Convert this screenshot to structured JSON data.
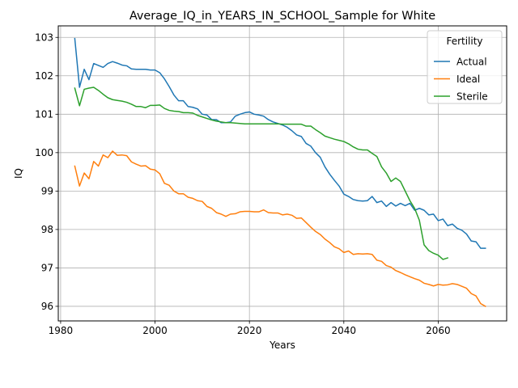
{
  "chart_data": {
    "type": "line",
    "title": "Average_IQ_in_YEARS_IN_SCHOOL_Sample for White",
    "xlabel": "Years",
    "ylabel": "IQ",
    "xlim": [
      1979.5,
      2074.5
    ],
    "ylim": [
      95.62,
      103.3
    ],
    "xticks": [
      1980,
      2000,
      2020,
      2040,
      2060
    ],
    "yticks": [
      96,
      97,
      98,
      99,
      100,
      101,
      102,
      103
    ],
    "grid": true,
    "legend": {
      "title": "Fertility",
      "position": "top-right"
    },
    "series": [
      {
        "name": "Actual",
        "color": "#1f77b4",
        "points": [
          [
            1983,
            102.97
          ],
          [
            1984,
            101.7
          ],
          [
            1985,
            102.17
          ],
          [
            1986,
            101.9
          ],
          [
            1987,
            102.32
          ],
          [
            1988,
            102.27
          ],
          [
            1989,
            102.22
          ],
          [
            1990,
            102.32
          ],
          [
            1991,
            102.37
          ],
          [
            1992,
            102.33
          ],
          [
            1993,
            102.28
          ],
          [
            1994,
            102.26
          ],
          [
            1995,
            102.18
          ],
          [
            1996,
            102.17
          ],
          [
            1997,
            102.17
          ],
          [
            1998,
            102.17
          ],
          [
            1999,
            102.15
          ],
          [
            2000,
            102.15
          ],
          [
            2001,
            102.08
          ],
          [
            2002,
            101.92
          ],
          [
            2003,
            101.72
          ],
          [
            2004,
            101.5
          ],
          [
            2005,
            101.35
          ],
          [
            2006,
            101.35
          ],
          [
            2007,
            101.2
          ],
          [
            2008,
            101.18
          ],
          [
            2009,
            101.14
          ],
          [
            2010,
            101.0
          ],
          [
            2011,
            100.98
          ],
          [
            2012,
            100.86
          ],
          [
            2013,
            100.86
          ],
          [
            2014,
            100.78
          ],
          [
            2015,
            100.78
          ],
          [
            2016,
            100.8
          ],
          [
            2017,
            100.95
          ],
          [
            2018,
            101.0
          ],
          [
            2019,
            101.04
          ],
          [
            2020,
            101.06
          ],
          [
            2021,
            101.0
          ],
          [
            2022,
            100.98
          ],
          [
            2023,
            100.95
          ],
          [
            2024,
            100.86
          ],
          [
            2025,
            100.8
          ],
          [
            2026,
            100.76
          ],
          [
            2027,
            100.72
          ],
          [
            2028,
            100.66
          ],
          [
            2029,
            100.57
          ],
          [
            2030,
            100.46
          ],
          [
            2031,
            100.42
          ],
          [
            2032,
            100.24
          ],
          [
            2033,
            100.17
          ],
          [
            2034,
            100.0
          ],
          [
            2035,
            99.88
          ],
          [
            2036,
            99.63
          ],
          [
            2037,
            99.44
          ],
          [
            2038,
            99.28
          ],
          [
            2039,
            99.13
          ],
          [
            2040,
            98.92
          ],
          [
            2041,
            98.86
          ],
          [
            2042,
            98.78
          ],
          [
            2043,
            98.75
          ],
          [
            2044,
            98.74
          ],
          [
            2045,
            98.75
          ],
          [
            2046,
            98.86
          ],
          [
            2047,
            98.7
          ],
          [
            2048,
            98.74
          ],
          [
            2049,
            98.6
          ],
          [
            2050,
            98.7
          ],
          [
            2051,
            98.61
          ],
          [
            2052,
            98.68
          ],
          [
            2053,
            98.62
          ],
          [
            2054,
            98.68
          ],
          [
            2055,
            98.5
          ],
          [
            2056,
            98.55
          ],
          [
            2057,
            98.5
          ],
          [
            2058,
            98.38
          ],
          [
            2059,
            98.4
          ],
          [
            2060,
            98.23
          ],
          [
            2061,
            98.27
          ],
          [
            2062,
            98.1
          ],
          [
            2063,
            98.14
          ],
          [
            2064,
            98.03
          ],
          [
            2065,
            97.98
          ],
          [
            2066,
            97.88
          ],
          [
            2067,
            97.7
          ],
          [
            2068,
            97.68
          ],
          [
            2069,
            97.51
          ],
          [
            2070,
            97.51
          ]
        ]
      },
      {
        "name": "Ideal",
        "color": "#ff7f0e",
        "points": [
          [
            1983,
            99.65
          ],
          [
            1984,
            99.13
          ],
          [
            1985,
            99.47
          ],
          [
            1986,
            99.32
          ],
          [
            1987,
            99.77
          ],
          [
            1988,
            99.65
          ],
          [
            1989,
            99.94
          ],
          [
            1990,
            99.87
          ],
          [
            1991,
            100.04
          ],
          [
            1992,
            99.93
          ],
          [
            1993,
            99.94
          ],
          [
            1994,
            99.92
          ],
          [
            1995,
            99.76
          ],
          [
            1996,
            99.7
          ],
          [
            1997,
            99.65
          ],
          [
            1998,
            99.66
          ],
          [
            1999,
            99.57
          ],
          [
            2000,
            99.55
          ],
          [
            2001,
            99.45
          ],
          [
            2002,
            99.2
          ],
          [
            2003,
            99.15
          ],
          [
            2004,
            99.0
          ],
          [
            2005,
            98.93
          ],
          [
            2006,
            98.93
          ],
          [
            2007,
            98.84
          ],
          [
            2008,
            98.81
          ],
          [
            2009,
            98.75
          ],
          [
            2010,
            98.73
          ],
          [
            2011,
            98.6
          ],
          [
            2012,
            98.55
          ],
          [
            2013,
            98.44
          ],
          [
            2014,
            98.4
          ],
          [
            2015,
            98.34
          ],
          [
            2016,
            98.4
          ],
          [
            2017,
            98.41
          ],
          [
            2018,
            98.46
          ],
          [
            2019,
            98.47
          ],
          [
            2020,
            98.47
          ],
          [
            2021,
            98.46
          ],
          [
            2022,
            98.46
          ],
          [
            2023,
            98.51
          ],
          [
            2024,
            98.44
          ],
          [
            2025,
            98.43
          ],
          [
            2026,
            98.43
          ],
          [
            2027,
            98.38
          ],
          [
            2028,
            98.4
          ],
          [
            2029,
            98.37
          ],
          [
            2030,
            98.29
          ],
          [
            2031,
            98.3
          ],
          [
            2032,
            98.18
          ],
          [
            2033,
            98.06
          ],
          [
            2034,
            97.95
          ],
          [
            2035,
            97.87
          ],
          [
            2036,
            97.75
          ],
          [
            2037,
            97.66
          ],
          [
            2038,
            97.55
          ],
          [
            2039,
            97.5
          ],
          [
            2040,
            97.4
          ],
          [
            2041,
            97.44
          ],
          [
            2042,
            97.35
          ],
          [
            2043,
            97.37
          ],
          [
            2044,
            97.36
          ],
          [
            2045,
            97.37
          ],
          [
            2046,
            97.35
          ],
          [
            2047,
            97.2
          ],
          [
            2048,
            97.17
          ],
          [
            2049,
            97.06
          ],
          [
            2050,
            97.02
          ],
          [
            2051,
            96.93
          ],
          [
            2052,
            96.88
          ],
          [
            2053,
            96.82
          ],
          [
            2054,
            96.77
          ],
          [
            2055,
            96.72
          ],
          [
            2056,
            96.68
          ],
          [
            2057,
            96.6
          ],
          [
            2058,
            96.57
          ],
          [
            2059,
            96.53
          ],
          [
            2060,
            96.57
          ],
          [
            2061,
            96.55
          ],
          [
            2062,
            96.56
          ],
          [
            2063,
            96.59
          ],
          [
            2064,
            96.57
          ],
          [
            2065,
            96.52
          ],
          [
            2066,
            96.47
          ],
          [
            2067,
            96.33
          ],
          [
            2068,
            96.27
          ],
          [
            2069,
            96.07
          ],
          [
            2070,
            96.0
          ]
        ]
      },
      {
        "name": "Sterile",
        "color": "#2ca02c",
        "points": [
          [
            1983,
            101.68
          ],
          [
            1984,
            101.22
          ],
          [
            1985,
            101.65
          ],
          [
            1986,
            101.68
          ],
          [
            1987,
            101.7
          ],
          [
            1988,
            101.62
          ],
          [
            1989,
            101.52
          ],
          [
            1990,
            101.43
          ],
          [
            1991,
            101.38
          ],
          [
            1992,
            101.36
          ],
          [
            1993,
            101.34
          ],
          [
            1994,
            101.31
          ],
          [
            1995,
            101.26
          ],
          [
            1996,
            101.2
          ],
          [
            1997,
            101.2
          ],
          [
            1998,
            101.17
          ],
          [
            1999,
            101.23
          ],
          [
            2000,
            101.23
          ],
          [
            2001,
            101.24
          ],
          [
            2002,
            101.15
          ],
          [
            2003,
            101.1
          ],
          [
            2004,
            101.08
          ],
          [
            2005,
            101.07
          ],
          [
            2006,
            101.04
          ],
          [
            2007,
            101.04
          ],
          [
            2008,
            101.03
          ],
          [
            2009,
            100.97
          ],
          [
            2010,
            100.93
          ],
          [
            2011,
            100.89
          ],
          [
            2012,
            100.85
          ],
          [
            2013,
            100.82
          ],
          [
            2014,
            100.8
          ],
          [
            2015,
            100.78
          ],
          [
            2016,
            100.78
          ],
          [
            2017,
            100.77
          ],
          [
            2018,
            100.76
          ],
          [
            2019,
            100.75
          ],
          [
            2020,
            100.75
          ],
          [
            2021,
            100.75
          ],
          [
            2022,
            100.75
          ],
          [
            2023,
            100.75
          ],
          [
            2024,
            100.75
          ],
          [
            2025,
            100.75
          ],
          [
            2026,
            100.75
          ],
          [
            2027,
            100.74
          ],
          [
            2028,
            100.74
          ],
          [
            2029,
            100.74
          ],
          [
            2030,
            100.74
          ],
          [
            2031,
            100.74
          ],
          [
            2032,
            100.69
          ],
          [
            2033,
            100.69
          ],
          [
            2034,
            100.6
          ],
          [
            2035,
            100.52
          ],
          [
            2036,
            100.43
          ],
          [
            2037,
            100.39
          ],
          [
            2038,
            100.35
          ],
          [
            2039,
            100.32
          ],
          [
            2040,
            100.29
          ],
          [
            2041,
            100.23
          ],
          [
            2042,
            100.15
          ],
          [
            2043,
            100.09
          ],
          [
            2044,
            100.07
          ],
          [
            2045,
            100.07
          ],
          [
            2046,
            99.98
          ],
          [
            2047,
            99.9
          ],
          [
            2048,
            99.63
          ],
          [
            2049,
            99.47
          ],
          [
            2050,
            99.25
          ],
          [
            2051,
            99.34
          ],
          [
            2052,
            99.25
          ],
          [
            2053,
            99.0
          ],
          [
            2054,
            98.75
          ],
          [
            2055,
            98.55
          ],
          [
            2056,
            98.24
          ],
          [
            2057,
            97.6
          ],
          [
            2058,
            97.45
          ],
          [
            2059,
            97.38
          ],
          [
            2060,
            97.33
          ],
          [
            2061,
            97.22
          ],
          [
            2062,
            97.26
          ]
        ]
      }
    ]
  }
}
